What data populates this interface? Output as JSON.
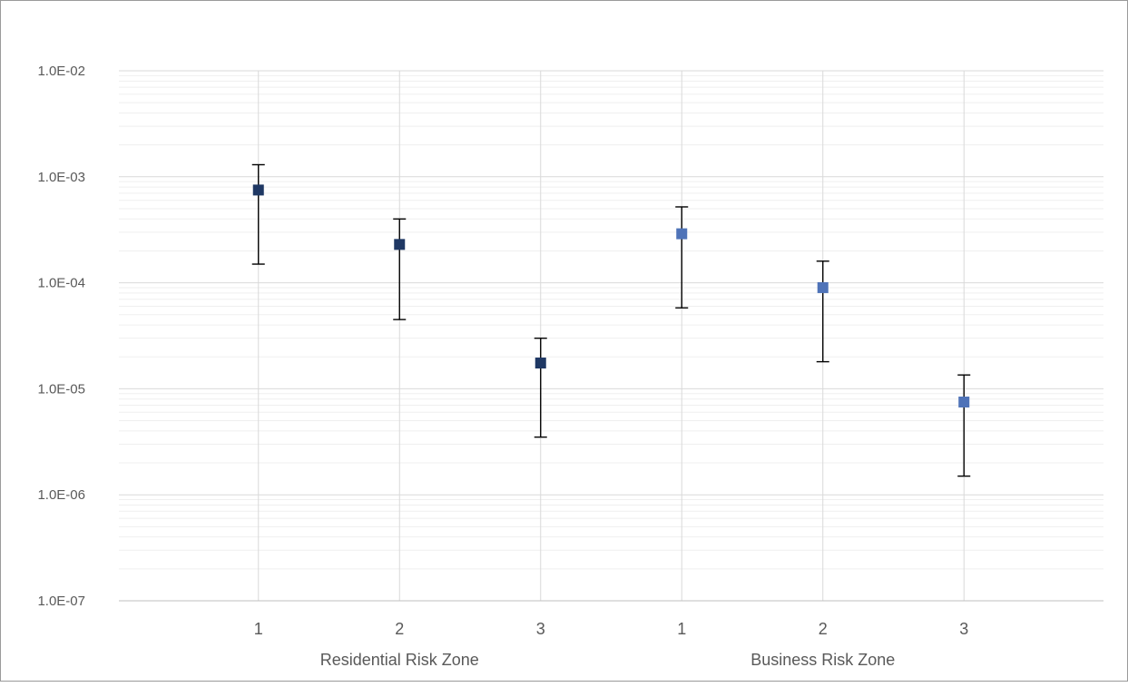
{
  "chart_data": {
    "type": "scatter",
    "title": "",
    "xlabel": "",
    "ylabel": "",
    "y_scale": "log",
    "ylim": [
      1e-07,
      0.01
    ],
    "y_tick_values": [
      0.01,
      0.001,
      0.0001,
      1e-05,
      1e-06,
      1e-07
    ],
    "y_tick_labels": [
      "1.0E-02",
      "1.0E-03",
      "1.0E-04",
      "1.0E-05",
      "1.0E-06",
      "1.0E-07"
    ],
    "grid": true,
    "legend": "none",
    "categories": [
      "1",
      "2",
      "3",
      "1",
      "2",
      "3"
    ],
    "groups": [
      {
        "label": "Residential Risk Zone",
        "color": "#1f3864"
      },
      {
        "label": "Business Risk Zone",
        "color": "#4f73b8"
      }
    ],
    "series": [
      {
        "name": "",
        "color": "#1f3864",
        "points": [
          {
            "x": "1",
            "y": 0.00075,
            "low": 0.00015,
            "high": 0.0013
          },
          {
            "x": "2",
            "y": 0.00023,
            "low": 4.5e-05,
            "high": 0.0004
          },
          {
            "x": "3",
            "y": 1.75e-05,
            "low": 3.5e-06,
            "high": 3e-05
          }
        ]
      },
      {
        "name": "",
        "color": "#4f73b8",
        "points": [
          {
            "x": "1",
            "y": 0.00029,
            "low": 5.8e-05,
            "high": 0.00052
          },
          {
            "x": "2",
            "y": 9e-05,
            "low": 1.8e-05,
            "high": 0.00016
          },
          {
            "x": "3",
            "y": 7.5e-06,
            "low": 1.5e-06,
            "high": 1.35e-05
          }
        ]
      }
    ]
  }
}
